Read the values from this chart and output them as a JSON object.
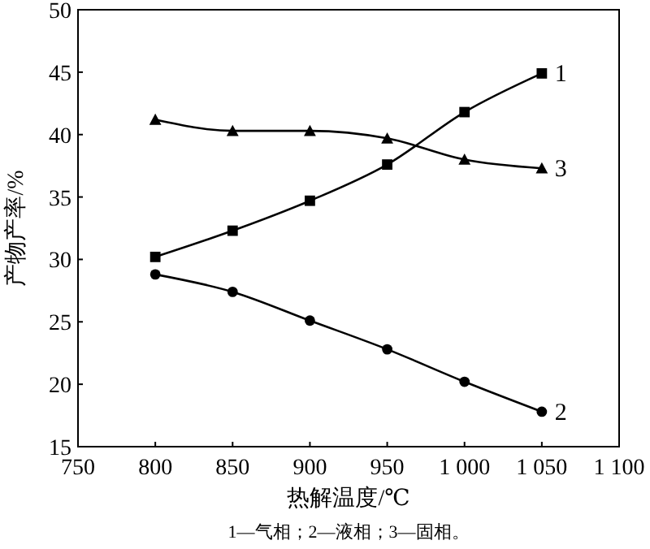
{
  "chart_data": {
    "type": "line",
    "xlabel": "热解温度/℃",
    "ylabel": "产物产率/%",
    "annotations": [
      "1—气相；2—液相；3—固相。"
    ],
    "x": [
      800,
      850,
      900,
      950,
      1000,
      1050
    ],
    "series": [
      {
        "name": "1",
        "color": "#000000",
        "marker": "square",
        "values": [
          30.2,
          32.3,
          34.7,
          37.6,
          41.8,
          44.9
        ]
      },
      {
        "name": "2",
        "color": "#000000",
        "marker": "circle",
        "values": [
          28.8,
          27.4,
          25.1,
          22.8,
          20.2,
          17.8
        ]
      },
      {
        "name": "3",
        "color": "#000000",
        "marker": "triangle",
        "values": [
          41.2,
          40.3,
          40.3,
          39.7,
          38.0,
          37.3
        ]
      }
    ],
    "xlim": [
      750,
      1100
    ],
    "xticks": [
      750,
      800,
      850,
      900,
      950,
      {
        "value": 1000,
        "label": "1 000"
      },
      {
        "value": 1050,
        "label": "1 050"
      },
      {
        "value": 1100,
        "label": "1 100"
      }
    ],
    "ylim": [
      15,
      50
    ],
    "yticks": [
      15,
      20,
      25,
      30,
      35,
      40,
      45,
      50
    ],
    "grid": false,
    "line_style": "solid"
  }
}
